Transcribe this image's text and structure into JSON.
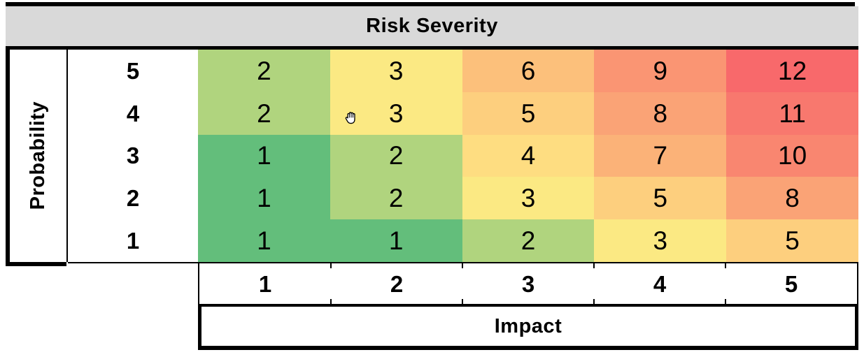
{
  "title": "Risk Severity",
  "y_axis": {
    "label": "Probability",
    "values": [
      "5",
      "4",
      "3",
      "2",
      "1"
    ]
  },
  "x_axis": {
    "label": "Impact",
    "values": [
      "1",
      "2",
      "3",
      "4",
      "5"
    ]
  },
  "chart_data": {
    "type": "heatmap",
    "title": "Risk Severity",
    "xlabel": "Impact",
    "ylabel": "Probability",
    "x_values": [
      1,
      2,
      3,
      4,
      5
    ],
    "y_values": [
      5,
      4,
      3,
      2,
      1
    ],
    "rows": [
      {
        "probability": 5,
        "values": [
          2,
          3,
          6,
          9,
          12
        ]
      },
      {
        "probability": 4,
        "values": [
          2,
          3,
          5,
          8,
          11
        ]
      },
      {
        "probability": 3,
        "values": [
          1,
          2,
          4,
          7,
          10
        ]
      },
      {
        "probability": 2,
        "values": [
          1,
          2,
          3,
          5,
          8
        ]
      },
      {
        "probability": 1,
        "values": [
          1,
          1,
          2,
          3,
          5
        ]
      }
    ],
    "value_colors": {
      "1": "#63BE7B",
      "2": "#B0D47E",
      "3": "#FBE983",
      "4": "#FEDD81",
      "5": "#FDCF7E",
      "6": "#FCC07B",
      "7": "#FBB278",
      "8": "#FAA376",
      "9": "#FA9573",
      "10": "#F98670",
      "11": "#F8786E",
      "12": "#F8696B"
    },
    "color_scale": {
      "min": "#63BE7B",
      "mid": "#FFEB84",
      "max": "#F8696B"
    },
    "legend": "none",
    "grid": "off"
  },
  "colors": {
    "title_bar_bg": "#D9D9D9",
    "border": "#000000",
    "background": "#FFFFFF",
    "text": "#000000"
  },
  "cursor": {
    "type": "hand-grab",
    "over_cell": "probability 4 / impact 2"
  }
}
